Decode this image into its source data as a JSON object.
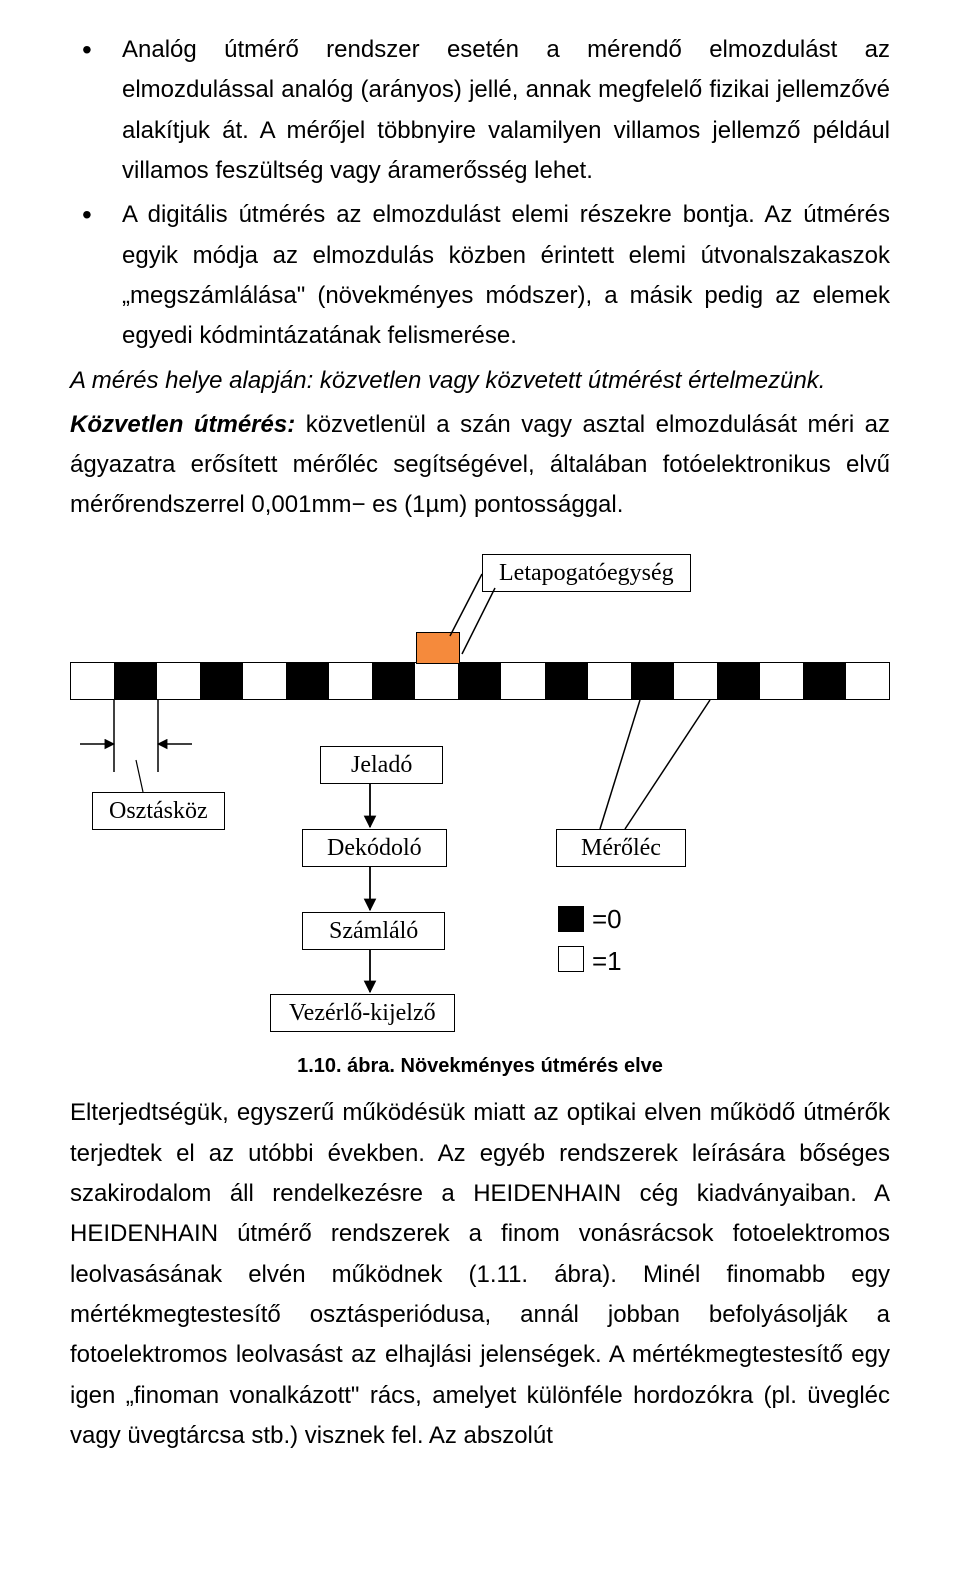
{
  "bullets": [
    "Analóg útmérő rendszer esetén a mérendő elmozdulást az elmozdulással analóg (arányos) jellé, annak megfelelő fizikai jellemzővé alakítjuk át. A mérőjel többnyire valamilyen villamos jellemző például villamos feszültség vagy áramerősség lehet.",
    "A digitális útmérés az elmozdulást elemi részekre bontja. Az útmérés egyik módja az elmozdulás közben érintett elemi útvonalszakaszok „megszámlálása\" (növekményes módszer), a másik pedig az elemek egyedi kódmintázatának felismerése."
  ],
  "para_place_intro": "A mérés helye alapján: közvetlen vagy közvetett útmérést értelmezünk.",
  "direct_label": "Közvetlen útmérés:",
  "direct_rest": " közvetlenül a szán vagy asztal elmozdulását méri az ágyazatra erősített mérőléc segítségével, általában fotóelektronikus elvű mérőrendszerrel 0,001mm− es (1µm) pontossággal.",
  "figure": {
    "labels": {
      "letapogato": "Letapogatóegység",
      "osztaskoz": "Osztásköz",
      "jelado": "Jeladó",
      "dekodolo": "Dekódoló",
      "szamlalo": "Számláló",
      "vezerlo": "Vezérlő-kijelző",
      "merolec": "Mérőléc"
    },
    "legend": {
      "zero": "=0",
      "one": "=1"
    },
    "tape_colors": {
      "black": "#000000",
      "white": "#ffffff"
    },
    "sensor_color": "#f58a3c",
    "segments": 19
  },
  "caption": "1.10. ábra. Növekményes útmérés elve",
  "tail": "Elterjedtségük, egyszerű működésük miatt az optikai elven működő útmérők terjedtek el az utóbbi években. Az egyéb rendszerek leírására bőséges szakirodalom áll rendelkezésre a HEIDENHAIN cég kiadványaiban. A HEIDENHAIN útmérő rendszerek a finom vonásrácsok fotoelektromos leolvasásának elvén működnek (1.11. ábra). Minél finomabb egy mértékmegtestesítő osztásperiódusa, annál jobban befolyásolják a fotoelektromos leolvasást az elhajlási jelenségek. A mértékmegtestesítő egy igen „finoman vonalkázott\" rács, amelyet különféle hordozókra (pl. üvegléc vagy üvegtárcsa stb.) visznek fel. Az abszolút"
}
